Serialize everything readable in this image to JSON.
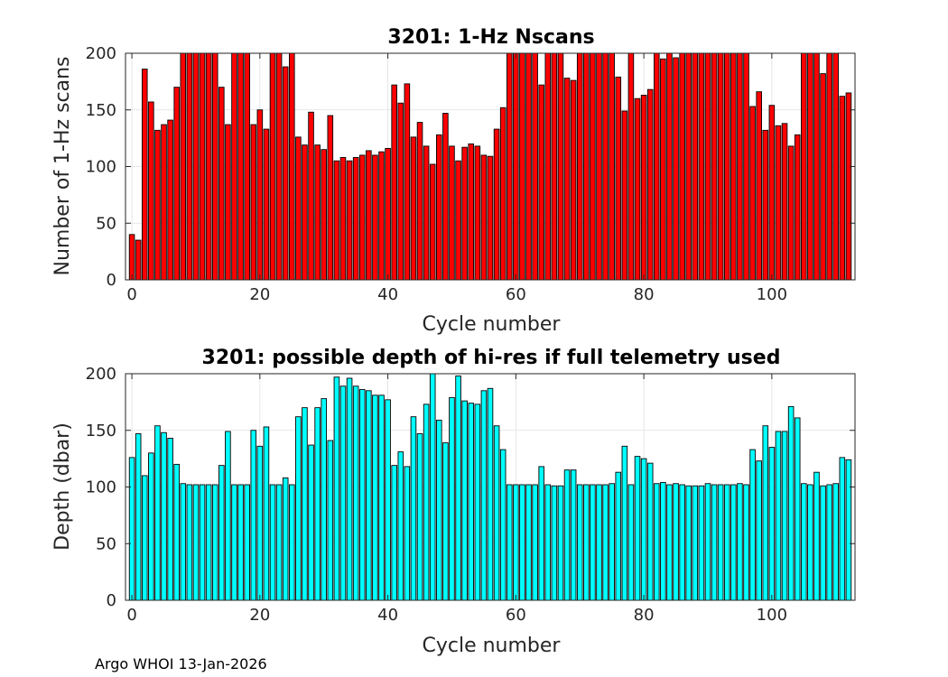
{
  "chart_data": [
    {
      "type": "bar",
      "title": "3201: 1-Hz Nscans",
      "xlabel": "Cycle number",
      "ylabel": "Number of 1-Hz scans",
      "xlim": [
        -1,
        113
      ],
      "ylim": [
        0,
        200
      ],
      "xticks": [
        0,
        20,
        40,
        60,
        80,
        100
      ],
      "yticks": [
        0,
        50,
        100,
        150,
        200
      ],
      "grid": true,
      "bar_color": "#ff0000",
      "x": [
        0,
        1,
        2,
        3,
        4,
        5,
        6,
        7,
        8,
        9,
        10,
        11,
        12,
        13,
        14,
        15,
        16,
        17,
        18,
        19,
        20,
        21,
        22,
        23,
        24,
        25,
        26,
        27,
        28,
        29,
        30,
        31,
        32,
        33,
        34,
        35,
        36,
        37,
        38,
        39,
        40,
        41,
        42,
        43,
        44,
        45,
        46,
        47,
        48,
        49,
        50,
        51,
        52,
        53,
        54,
        55,
        56,
        57,
        58,
        59,
        60,
        61,
        62,
        63,
        64,
        65,
        66,
        67,
        68,
        69,
        70,
        71,
        72,
        73,
        74,
        75,
        76,
        77,
        78,
        79,
        80,
        81,
        82,
        83,
        84,
        85,
        86,
        87,
        88,
        89,
        90,
        91,
        92,
        93,
        94,
        95,
        96,
        97,
        98,
        99,
        100,
        101,
        102,
        103,
        104,
        105,
        106,
        107,
        108,
        109,
        110,
        111,
        112
      ],
      "values": [
        40,
        35,
        186,
        157,
        132,
        137,
        141,
        170,
        200,
        200,
        200,
        200,
        200,
        200,
        170,
        137,
        200,
        200,
        200,
        137,
        150,
        133,
        200,
        200,
        188,
        200,
        126,
        119,
        148,
        119,
        115,
        145,
        105,
        108,
        105,
        108,
        110,
        114,
        110,
        113,
        116,
        172,
        156,
        173,
        126,
        139,
        118,
        102,
        128,
        147,
        118,
        105,
        117,
        120,
        118,
        110,
        109,
        133,
        152,
        200,
        200,
        200,
        200,
        200,
        172,
        200,
        200,
        200,
        178,
        176,
        200,
        200,
        200,
        200,
        200,
        200,
        179,
        149,
        200,
        160,
        163,
        168,
        200,
        195,
        200,
        196,
        200,
        200,
        200,
        200,
        200,
        200,
        200,
        200,
        200,
        200,
        200,
        153,
        166,
        132,
        154,
        136,
        138,
        118,
        128,
        200,
        200,
        200,
        182,
        200,
        200,
        162,
        165
      ]
    },
    {
      "type": "bar",
      "title": "3201: possible depth of hi-res if full telemetry used",
      "xlabel": "Cycle number",
      "ylabel": "Depth (dbar)",
      "xlim": [
        -1,
        113
      ],
      "ylim": [
        0,
        200
      ],
      "xticks": [
        0,
        20,
        40,
        60,
        80,
        100
      ],
      "yticks": [
        0,
        50,
        100,
        150,
        200
      ],
      "grid": true,
      "bar_color": "#00ffff",
      "x": [
        0,
        1,
        2,
        3,
        4,
        5,
        6,
        7,
        8,
        9,
        10,
        11,
        12,
        13,
        14,
        15,
        16,
        17,
        18,
        19,
        20,
        21,
        22,
        23,
        24,
        25,
        26,
        27,
        28,
        29,
        30,
        31,
        32,
        33,
        34,
        35,
        36,
        37,
        38,
        39,
        40,
        41,
        42,
        43,
        44,
        45,
        46,
        47,
        48,
        49,
        50,
        51,
        52,
        53,
        54,
        55,
        56,
        57,
        58,
        59,
        60,
        61,
        62,
        63,
        64,
        65,
        66,
        67,
        68,
        69,
        70,
        71,
        72,
        73,
        74,
        75,
        76,
        77,
        78,
        79,
        80,
        81,
        82,
        83,
        84,
        85,
        86,
        87,
        88,
        89,
        90,
        91,
        92,
        93,
        94,
        95,
        96,
        97,
        98,
        99,
        100,
        101,
        102,
        103,
        104,
        105,
        106,
        107,
        108,
        109,
        110,
        111,
        112
      ],
      "values": [
        126,
        147,
        110,
        130,
        154,
        148,
        143,
        120,
        103,
        102,
        102,
        102,
        102,
        102,
        119,
        149,
        102,
        102,
        102,
        150,
        136,
        153,
        102,
        102,
        108,
        102,
        162,
        170,
        137,
        170,
        178,
        141,
        197,
        189,
        196,
        189,
        186,
        185,
        181,
        181,
        177,
        119,
        131,
        118,
        162,
        147,
        173,
        200,
        159,
        139,
        179,
        198,
        176,
        174,
        173,
        185,
        187,
        154,
        133,
        102,
        102,
        102,
        102,
        102,
        118,
        102,
        101,
        101,
        115,
        115,
        102,
        102,
        102,
        102,
        102,
        103,
        113,
        136,
        102,
        127,
        125,
        121,
        103,
        104,
        102,
        103,
        102,
        101,
        101,
        101,
        103,
        102,
        102,
        102,
        102,
        103,
        102,
        133,
        123,
        154,
        135,
        149,
        149,
        171,
        161,
        103,
        102,
        113,
        101,
        102,
        103,
        126,
        124
      ]
    }
  ],
  "footer": {
    "text": "Argo WHOI 13-Jan-2026"
  }
}
